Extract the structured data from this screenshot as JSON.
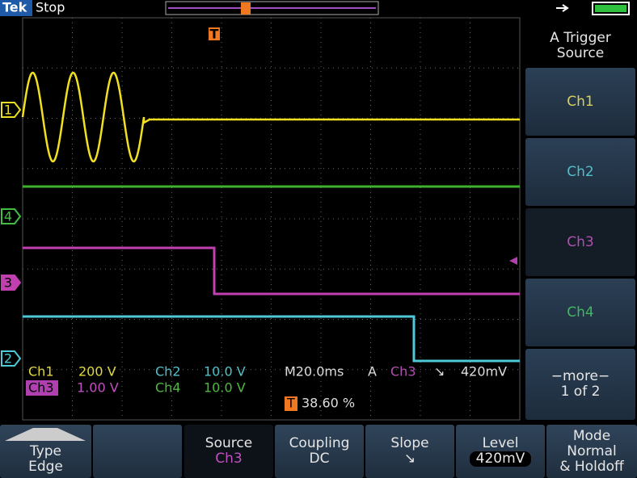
{
  "status": {
    "brand": "Tek",
    "state": "Stop"
  },
  "trigger_marker": "T",
  "channel_markers": [
    "1",
    "4",
    "3",
    "2"
  ],
  "readouts": {
    "ch1_label": "Ch1",
    "ch1_scale": "200 V",
    "ch2_label": "Ch2",
    "ch2_scale": "10.0 V",
    "ch3_label": "Ch3",
    "ch3_scale": "1.00 V",
    "ch4_label": "Ch4",
    "ch4_scale": "10.0 V",
    "timebase": "M20.0ms",
    "trigger_mode": "A",
    "trigger_source": "Ch3",
    "trigger_slope": "↘",
    "trigger_level": "420mV",
    "trigger_position_marker": "T",
    "trigger_position": "38.60 %"
  },
  "side_menu": {
    "title": [
      "A Trigger",
      "Source"
    ],
    "items": [
      "Ch1",
      "Ch2",
      "Ch3",
      "Ch4"
    ],
    "more": "−more−",
    "page": "1 of 2"
  },
  "bottom_menu": [
    {
      "lines": [
        "Type",
        "Edge"
      ]
    },
    {
      "lines": [
        "Source",
        "Ch3"
      ]
    },
    {
      "lines": [
        "Coupling",
        "DC"
      ]
    },
    {
      "lines": [
        "Slope",
        "↘"
      ]
    },
    {
      "lines": [
        "Level",
        "420mV"
      ]
    },
    {
      "lines": [
        "Mode",
        "Normal",
        "& Holdoff"
      ]
    }
  ]
}
